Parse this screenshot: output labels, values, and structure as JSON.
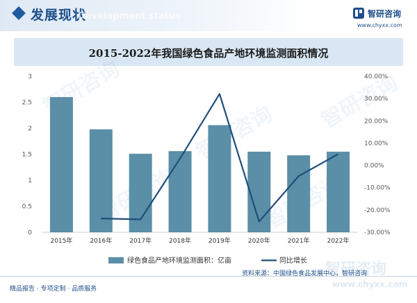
{
  "header": {
    "section_title": "发展现状",
    "section_subtitle": "Development status",
    "logo_text": "智研咨询",
    "logo_url": "www.chyxx.com",
    "icon": "diamond-icon"
  },
  "footer": {
    "source": "资料来源：中国绿色食品发展中心，智研咨询",
    "slogan": "精品报告 · 专项定制 · 品质服务",
    "watermark_text": "智研咨询",
    "watermark_url": "www.chyxx.com"
  },
  "chart_data": {
    "type": "bar",
    "title": "2015-2022年我国绿色食品产地环境监测面积情况",
    "categories": [
      "2015年",
      "2016年",
      "2017年",
      "2018年",
      "2019年",
      "2020年",
      "2021年",
      "2022年"
    ],
    "series": [
      {
        "name": "绿色食品产地环境监测面积：亿亩",
        "type": "bar",
        "axis": "left",
        "values": [
          2.6,
          1.98,
          1.51,
          1.56,
          2.06,
          1.55,
          1.48,
          1.55
        ],
        "color": "#5b8fa8"
      },
      {
        "name": "同比增长",
        "type": "line",
        "axis": "right",
        "values": [
          null,
          -0.238,
          -0.242,
          0.031,
          0.321,
          -0.252,
          -0.048,
          0.051
        ],
        "color": "#1f4e79"
      }
    ],
    "y_left": {
      "min": 0,
      "max": 3,
      "ticks": [
        "0",
        "0.5",
        "1",
        "1.5",
        "2",
        "2.5",
        "3"
      ]
    },
    "y_right": {
      "min": -0.3,
      "max": 0.4,
      "ticks": [
        "-30.00%",
        "-20.00%",
        "-10.00%",
        "0.00%",
        "10.00%",
        "20.00%",
        "30.00%",
        "40.00%"
      ]
    },
    "grid": false,
    "legend_position": "bottom"
  }
}
